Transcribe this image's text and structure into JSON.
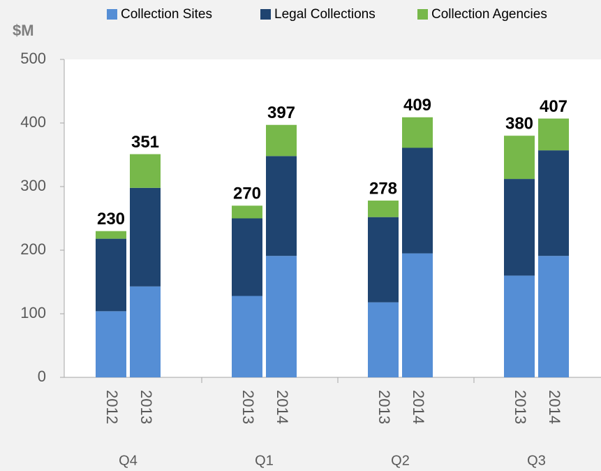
{
  "chart_data": {
    "type": "stacked-bar",
    "y_label": "$M",
    "groups": [
      "Q4",
      "Q1",
      "Q2",
      "Q3"
    ],
    "categories": [
      "2012",
      "2013",
      "2013",
      "2014",
      "2013",
      "2014",
      "2013",
      "2014"
    ],
    "series": [
      {
        "name": "Collection Sites",
        "color": "#558ed5",
        "values": [
          104,
          143,
          128,
          191,
          118,
          195,
          160,
          191
        ]
      },
      {
        "name": "Legal Collections",
        "color": "#1f4470",
        "values": [
          114,
          155,
          122,
          157,
          134,
          166,
          152,
          166
        ]
      },
      {
        "name": "Collection Agencies",
        "color": "#77b84a",
        "values": [
          12,
          53,
          20,
          49,
          26,
          48,
          68,
          50
        ]
      }
    ],
    "totals": [
      230,
      351,
      270,
      397,
      278,
      409,
      380,
      407
    ],
    "ylim": [
      0,
      500
    ],
    "yticks": [
      0,
      100,
      200,
      300,
      400,
      500
    ],
    "grid": false
  }
}
